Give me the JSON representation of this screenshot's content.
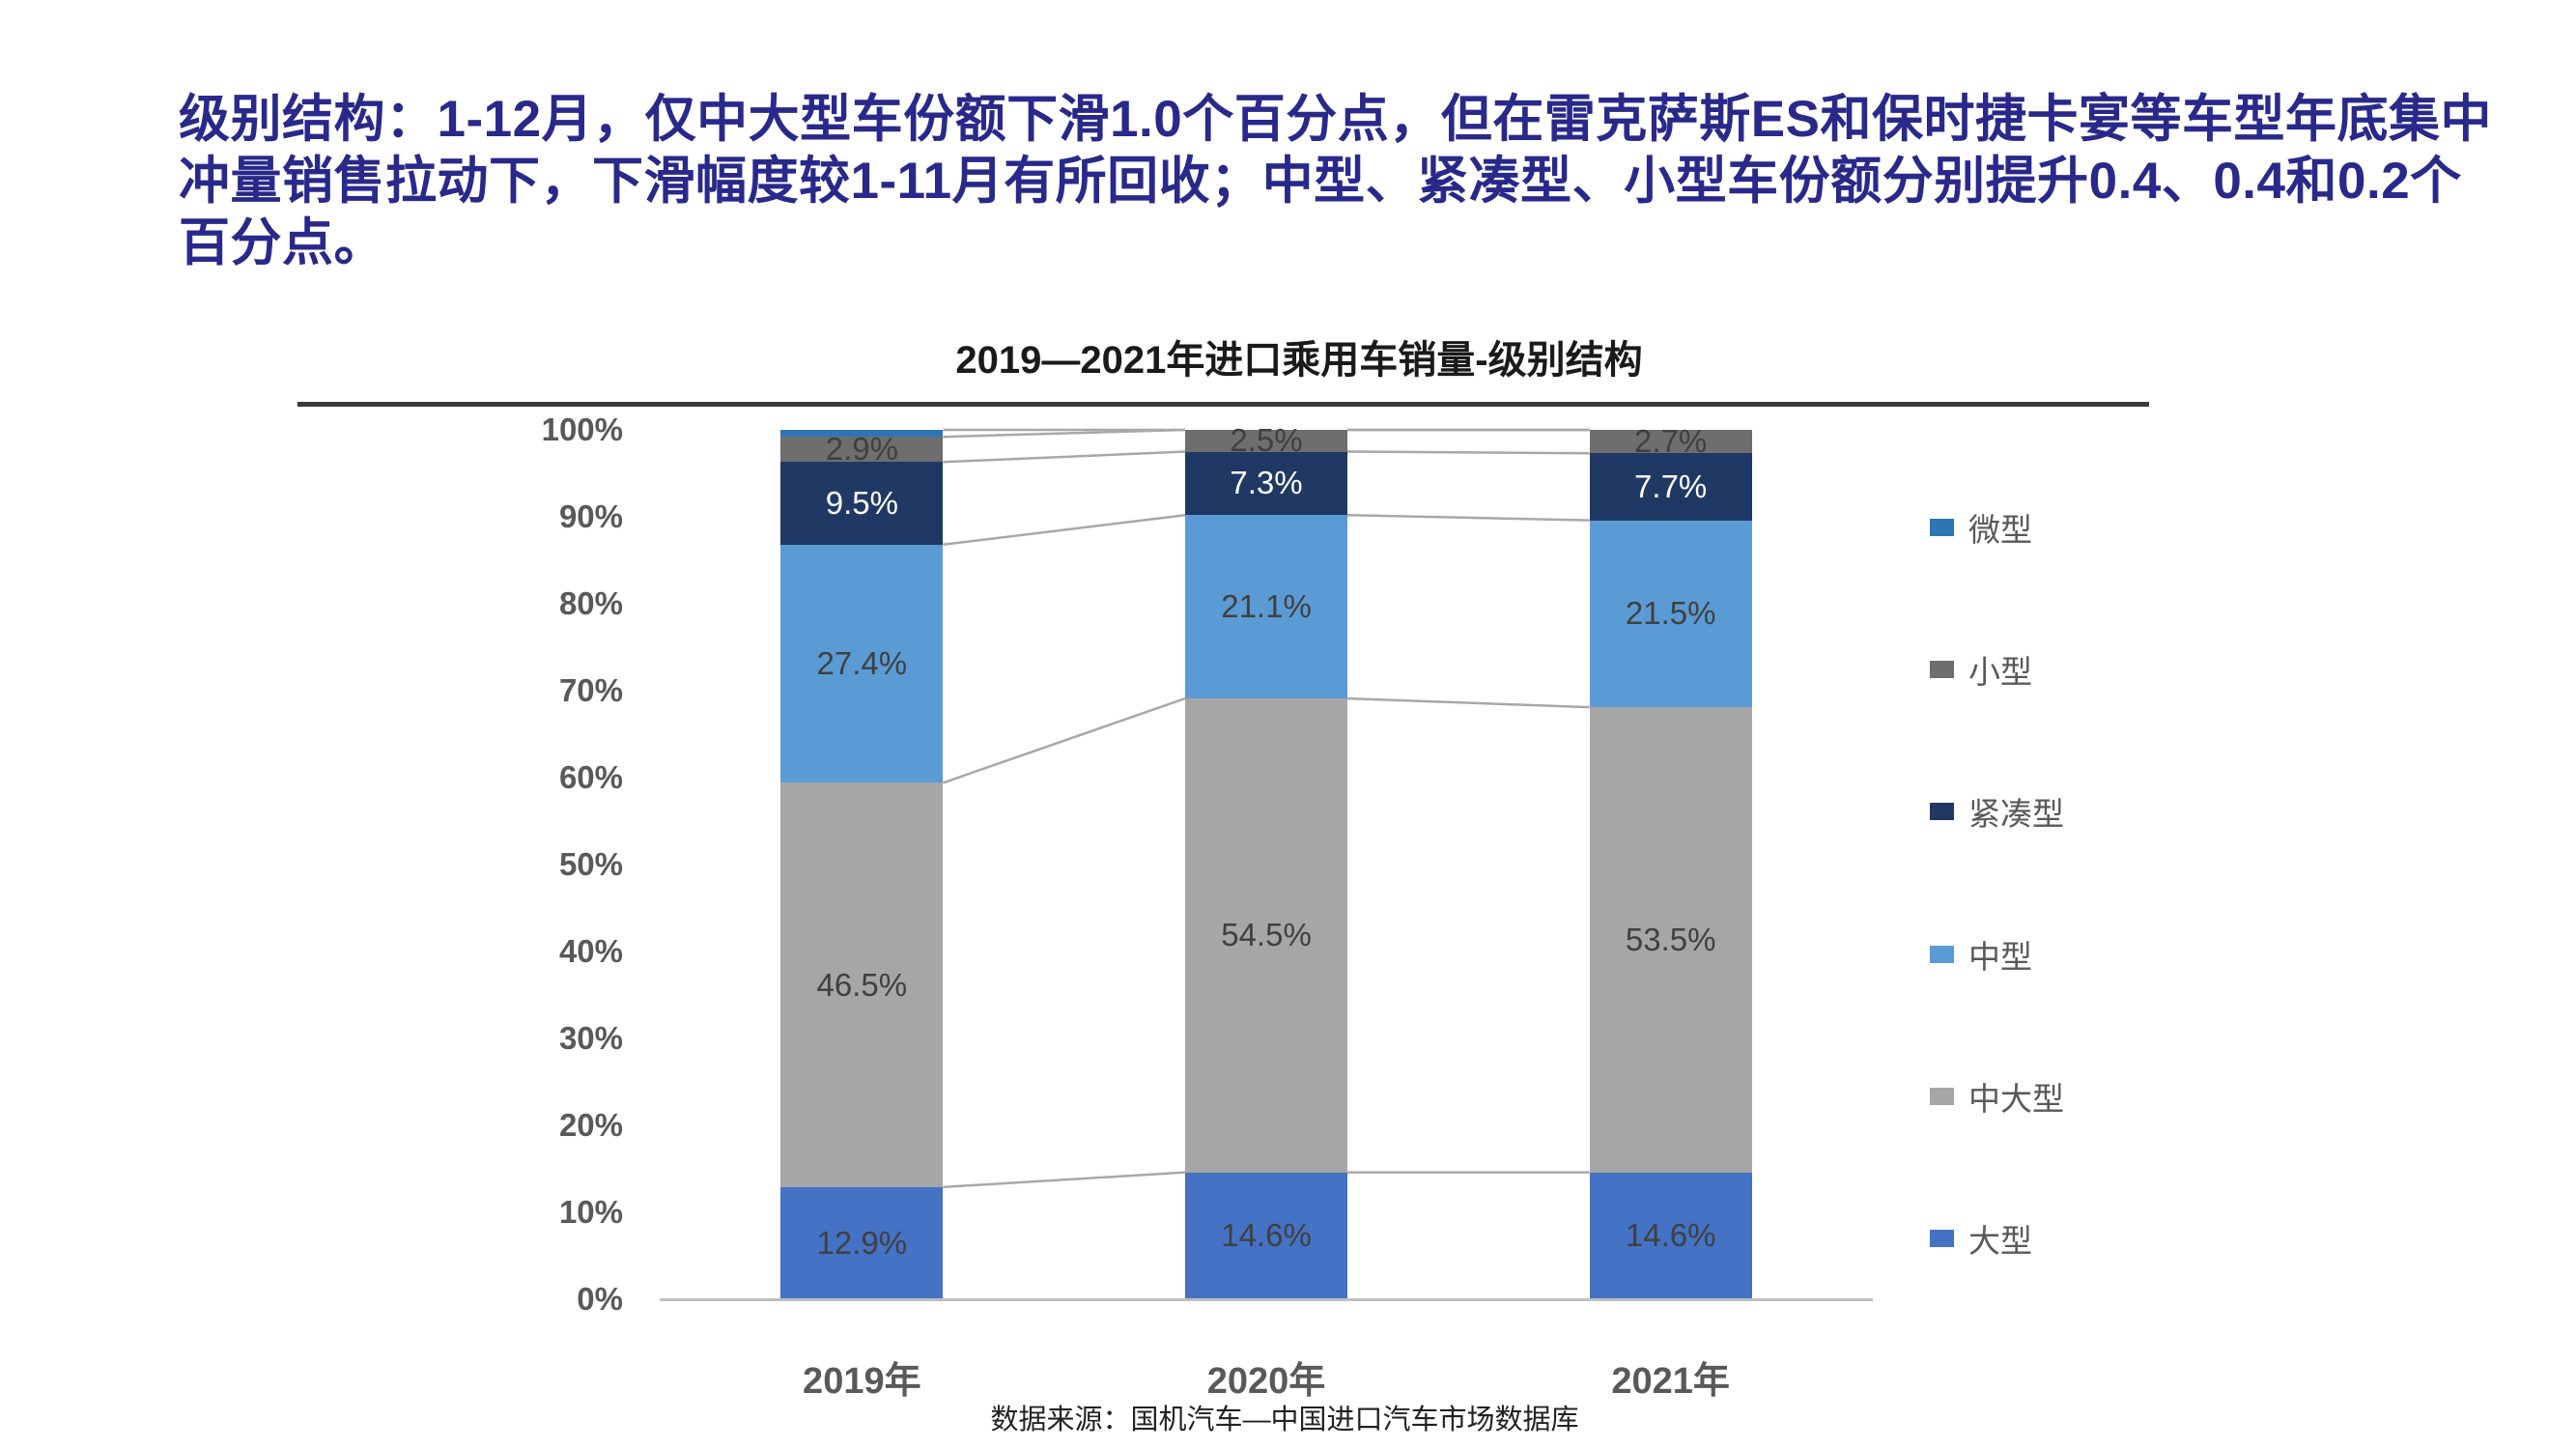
{
  "headline": {
    "text": "级别结构：1-12月，仅中大型车份额下滑1.0个百分点，但在雷克萨斯ES和保时捷卡宴等车型年底集中冲量销售拉动下，下滑幅度较1-11月有所回收；中型、紧凑型、小型车份额分别提升0.4、0.4和0.2个百分点。",
    "color": "#29298B"
  },
  "chart_data": {
    "type": "bar",
    "variant": "stacked-percent-column",
    "title": "2019—2021年进口乘用车销量-级别结构",
    "categories": [
      "2019年",
      "2020年",
      "2021年"
    ],
    "series": [
      {
        "name": "大型",
        "color": "#4472C4",
        "values": [
          12.9,
          14.6,
          14.6
        ],
        "labels": [
          "12.9%",
          "14.6%",
          "14.6%"
        ],
        "label_color": "#404040"
      },
      {
        "name": "中大型",
        "color": "#A6A6A6",
        "values": [
          46.5,
          54.5,
          53.5
        ],
        "labels": [
          "46.5%",
          "54.5%",
          "53.5%"
        ],
        "label_color": "#404040"
      },
      {
        "name": "中型",
        "color": "#5B9BD5",
        "values": [
          27.4,
          21.1,
          21.5
        ],
        "labels": [
          "27.4%",
          "21.1%",
          "21.5%"
        ],
        "label_color": "#404040"
      },
      {
        "name": "紧凑型",
        "color": "#1F3864",
        "values": [
          9.5,
          7.3,
          7.7
        ],
        "labels": [
          "9.5%",
          "7.3%",
          "7.7%"
        ],
        "label_color": "#FFFFFF"
      },
      {
        "name": "小型",
        "color": "#6E6E6E",
        "values": [
          2.9,
          2.5,
          2.7
        ],
        "labels": [
          "2.9%",
          "2.5%",
          "2.7%"
        ],
        "label_color": "#404040"
      },
      {
        "name": "微型",
        "color": "#2E75B6",
        "values": [
          0.8,
          0.0,
          0.0
        ],
        "labels": [
          "",
          "",
          ""
        ],
        "label_color": "#404040"
      }
    ],
    "y_axis": {
      "min": 0,
      "max": 100,
      "tick_step": 10,
      "ticks": [
        "0%",
        "10%",
        "20%",
        "30%",
        "40%",
        "50%",
        "60%",
        "70%",
        "80%",
        "90%",
        "100%"
      ]
    },
    "legend_position": "right",
    "legend_order_top_to_bottom": [
      "微型",
      "小型",
      "紧凑型",
      "中型",
      "中大型",
      "大型"
    ],
    "grid": false,
    "series_connector_lines": true,
    "connector_line_color": "#A8A8A8",
    "axis_line_color": "#BFBFBF",
    "tick_label_color": "#595959"
  },
  "source": {
    "text": "数据来源：国机汽车—中国进口汽车市场数据库"
  }
}
